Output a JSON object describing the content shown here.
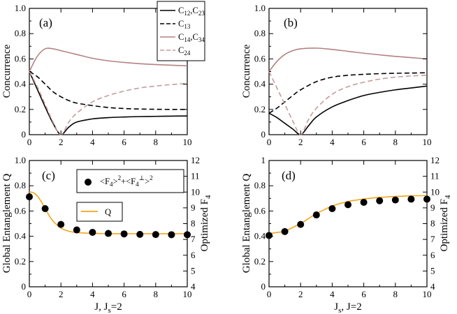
{
  "figure": {
    "colors": {
      "c12": "#000000",
      "c13": "#000000",
      "c14": "#b48282",
      "c24": "#c79b9b",
      "Q": "#f2a51a",
      "marker": "#000000"
    }
  },
  "chart_data": [
    {
      "type": "line",
      "panel_label": "(a)",
      "ylabel": "Concurrence",
      "xlim": [
        0,
        10
      ],
      "ylim": [
        0,
        1
      ],
      "xticks": [
        "0",
        "2",
        "4",
        "6",
        "8",
        "10"
      ],
      "yticks": [
        "0",
        "0.2",
        "0.4",
        "0.6",
        "0.8",
        "1.0"
      ],
      "legend": [
        {
          "main": "C",
          "sub1": "12",
          "sep": ",C",
          "sub2": "23",
          "style": "solid",
          "color": "c12"
        },
        {
          "main": "C",
          "sub1": "13",
          "sep": "",
          "sub2": "",
          "style": "dashed",
          "color": "c13"
        },
        {
          "main": "C",
          "sub1": "14",
          "sep": ",C",
          "sub2": "34",
          "style": "solid",
          "color": "c14"
        },
        {
          "main": "C",
          "sub1": "24",
          "sep": "",
          "sub2": "",
          "style": "dashed",
          "color": "c24"
        }
      ],
      "series": [
        {
          "name": "C12,C23",
          "style": "solid",
          "color": "c12",
          "x": [
            0,
            0.5,
            1,
            1.5,
            2,
            2.5,
            3,
            4,
            5,
            6,
            7,
            8,
            9,
            10
          ],
          "y": [
            0.5,
            0.36,
            0.22,
            0.09,
            0.0,
            0.06,
            0.1,
            0.125,
            0.135,
            0.14,
            0.143,
            0.145,
            0.147,
            0.148
          ]
        },
        {
          "name": "C13",
          "style": "dashed",
          "color": "c13",
          "x": [
            0,
            0.5,
            1,
            1.5,
            2,
            2.5,
            3,
            4,
            5,
            6,
            7,
            8,
            9,
            10
          ],
          "y": [
            0.5,
            0.46,
            0.4,
            0.34,
            0.3,
            0.27,
            0.25,
            0.23,
            0.215,
            0.207,
            0.203,
            0.201,
            0.2,
            0.2
          ]
        },
        {
          "name": "C14,C34",
          "style": "solid",
          "color": "c14",
          "x": [
            0,
            0.5,
            1,
            1.5,
            2,
            3,
            4,
            5,
            6,
            7,
            8,
            9,
            10
          ],
          "y": [
            0.5,
            0.62,
            0.68,
            0.68,
            0.665,
            0.635,
            0.605,
            0.585,
            0.572,
            0.562,
            0.555,
            0.55,
            0.545
          ]
        },
        {
          "name": "C24",
          "style": "dashed",
          "color": "c24",
          "x": [
            0,
            0.5,
            1,
            1.5,
            2,
            2.5,
            3,
            4,
            5,
            6,
            7,
            8,
            9,
            10
          ],
          "y": [
            0.5,
            0.38,
            0.24,
            0.1,
            0.0,
            0.1,
            0.17,
            0.26,
            0.31,
            0.345,
            0.37,
            0.385,
            0.397,
            0.405
          ]
        }
      ]
    },
    {
      "type": "line",
      "panel_label": "(b)",
      "ylabel": "Concurrence",
      "xlim": [
        0,
        10
      ],
      "ylim": [
        0,
        1
      ],
      "xticks": [
        "0",
        "2",
        "4",
        "6",
        "8",
        "10"
      ],
      "yticks": [
        "0",
        "0.2",
        "0.4",
        "0.6",
        "0.8",
        "1.0"
      ],
      "series": [
        {
          "name": "C12,C23",
          "style": "solid",
          "color": "c12",
          "x": [
            0,
            0.5,
            1,
            1.5,
            2,
            2.5,
            3,
            4,
            5,
            6,
            7,
            8,
            9,
            10
          ],
          "y": [
            0.17,
            0.135,
            0.09,
            0.045,
            0.0,
            0.07,
            0.14,
            0.22,
            0.27,
            0.31,
            0.335,
            0.355,
            0.37,
            0.385
          ]
        },
        {
          "name": "C13",
          "style": "dashed",
          "color": "c13",
          "x": [
            0,
            0.5,
            1,
            1.5,
            2,
            3,
            4,
            5,
            6,
            7,
            8,
            9,
            10
          ],
          "y": [
            0.17,
            0.21,
            0.26,
            0.31,
            0.355,
            0.42,
            0.455,
            0.47,
            0.478,
            0.483,
            0.486,
            0.488,
            0.49
          ]
        },
        {
          "name": "C14,C34",
          "style": "solid",
          "color": "c14",
          "x": [
            0,
            0.5,
            1,
            1.5,
            2,
            3,
            4,
            5,
            6,
            7,
            8,
            9,
            10
          ],
          "y": [
            0.5,
            0.58,
            0.635,
            0.665,
            0.68,
            0.685,
            0.675,
            0.66,
            0.645,
            0.632,
            0.62,
            0.61,
            0.6
          ]
        },
        {
          "name": "C24",
          "style": "dashed",
          "color": "c24",
          "x": [
            0,
            0.5,
            1,
            1.5,
            2,
            2.5,
            3,
            4,
            5,
            6,
            7,
            8,
            9,
            10
          ],
          "y": [
            0.5,
            0.37,
            0.24,
            0.11,
            0.0,
            0.12,
            0.21,
            0.32,
            0.38,
            0.415,
            0.44,
            0.455,
            0.465,
            0.47
          ]
        }
      ]
    },
    {
      "type": "line",
      "panel_label": "(c)",
      "xlabel": "J, Jₛ=2",
      "xlabel_main": "J, J",
      "xlabel_sub": "s",
      "xlabel_tail": "=2",
      "ylabel": "Global Entanglement Q",
      "ylabel2_main": "Optimized F",
      "ylabel2_sub": "4",
      "xlim": [
        0,
        10
      ],
      "ylim": [
        0,
        1
      ],
      "y2lim": [
        4,
        12
      ],
      "xticks": [
        "0",
        "2",
        "4",
        "6",
        "8",
        "10"
      ],
      "yticks": [
        "0",
        "0.2",
        "0.4",
        "0.6",
        "0.8",
        "1.0"
      ],
      "y2ticks": [
        "4",
        "5",
        "6",
        "7",
        "8",
        "9",
        "10",
        "11",
        "12"
      ],
      "legend_markers": {
        "label": "<F4>^2+<F4⊥>^2"
      },
      "legend_line": {
        "label": "Q"
      },
      "series": [
        {
          "name": "Q",
          "style": "solid",
          "color": "Q",
          "axis": "left",
          "x": [
            0,
            0.25,
            0.5,
            0.75,
            1,
            1.25,
            1.5,
            2,
            2.5,
            3,
            4,
            5,
            6,
            7,
            8,
            9,
            10
          ],
          "y": [
            0.75,
            0.745,
            0.72,
            0.675,
            0.62,
            0.565,
            0.52,
            0.465,
            0.44,
            0.43,
            0.423,
            0.421,
            0.42,
            0.42,
            0.42,
            0.42,
            0.42
          ]
        },
        {
          "name": "<F4>^2+<F4perp>^2",
          "style": "markers",
          "color": "marker",
          "axis": "right",
          "x": [
            0,
            1,
            2,
            3,
            4,
            5,
            6,
            7,
            8,
            9,
            10
          ],
          "y": [
            9.7,
            8.95,
            7.95,
            7.6,
            7.45,
            7.38,
            7.35,
            7.32,
            7.31,
            7.3,
            7.3
          ]
        }
      ]
    },
    {
      "type": "line",
      "panel_label": "(d)",
      "xlabel": "Jₛ, J=2",
      "xlabel_main": "J",
      "xlabel_sub": "s",
      "xlabel_tail": ", J=2",
      "ylabel": "Global Entanglement Q",
      "ylabel2_main": "Optimized F",
      "ylabel2_sub": "4",
      "xlim": [
        0,
        10
      ],
      "ylim": [
        0,
        1
      ],
      "y2lim": [
        4,
        12
      ],
      "xticks": [
        "0",
        "2",
        "4",
        "6",
        "8",
        "10"
      ],
      "yticks": [
        "0",
        "0.2",
        "0.4",
        "0.6",
        "0.8",
        "1"
      ],
      "y2ticks": [
        "4",
        "5",
        "6",
        "7",
        "8",
        "9",
        "10",
        "11",
        "12"
      ],
      "series": [
        {
          "name": "Q",
          "style": "solid",
          "color": "Q",
          "axis": "left",
          "x": [
            0,
            0.5,
            1,
            1.5,
            2,
            2.5,
            3,
            3.5,
            4,
            5,
            6,
            7,
            8,
            9,
            10
          ],
          "y": [
            0.42,
            0.43,
            0.44,
            0.47,
            0.5,
            0.54,
            0.58,
            0.61,
            0.64,
            0.675,
            0.695,
            0.708,
            0.715,
            0.72,
            0.722
          ]
        },
        {
          "name": "<F4>^2+<F4perp>^2",
          "style": "markers",
          "color": "marker",
          "axis": "right",
          "x": [
            0,
            1,
            2,
            3,
            4,
            5,
            6,
            7,
            8,
            9,
            10
          ],
          "y": [
            7.25,
            7.5,
            7.95,
            8.55,
            8.95,
            9.2,
            9.35,
            9.45,
            9.5,
            9.55,
            9.55
          ]
        }
      ]
    }
  ]
}
